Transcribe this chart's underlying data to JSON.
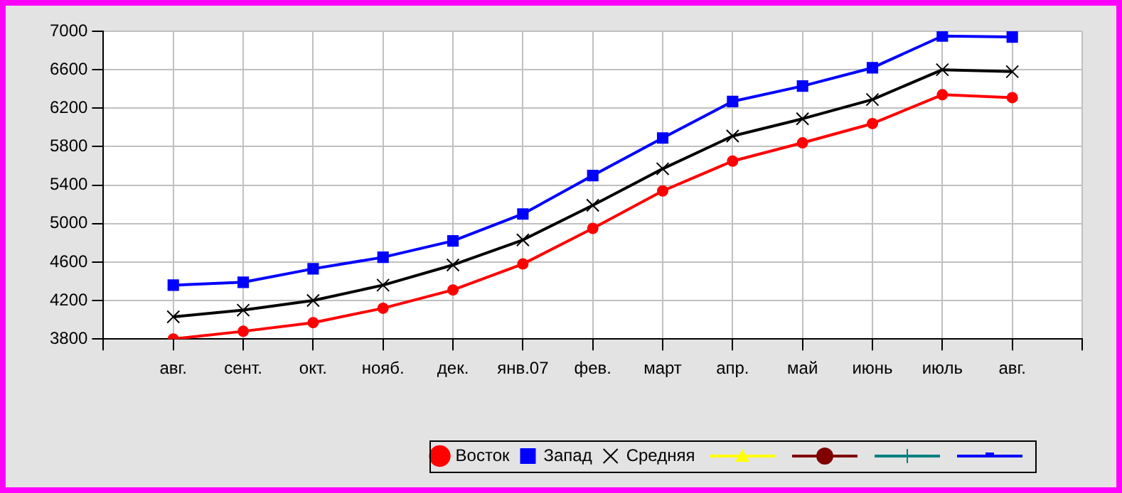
{
  "chart_data": {
    "type": "line",
    "categories": [
      null,
      "авг.",
      "сент.",
      "окт.",
      "нояб.",
      "дек.",
      "янв.07",
      "фев.",
      "март",
      "апр.",
      "май",
      "июнь",
      "июль",
      "авг.",
      null
    ],
    "series": [
      {
        "name": "Восток",
        "color": "#ff0000",
        "marker": "circle",
        "values": [
          null,
          3800,
          3880,
          3970,
          4120,
          4310,
          4580,
          4950,
          5340,
          5650,
          5840,
          6040,
          6340,
          6310,
          null
        ]
      },
      {
        "name": "Запад",
        "color": "#0000ff",
        "marker": "square",
        "values": [
          null,
          4360,
          4390,
          4530,
          4650,
          4820,
          5100,
          5500,
          5890,
          6270,
          6430,
          6620,
          6950,
          6940,
          null
        ]
      },
      {
        "name": "Средняя",
        "color": "#000000",
        "marker": "cross",
        "values": [
          null,
          4030,
          4100,
          4200,
          4360,
          4570,
          4830,
          5190,
          5570,
          5910,
          6090,
          6290,
          6600,
          6580,
          null
        ]
      }
    ],
    "ylim": [
      3800,
      7000
    ],
    "yticks": [
      3800,
      4200,
      4600,
      5000,
      5400,
      5800,
      6200,
      6600,
      7000
    ],
    "grid": true,
    "legend": "bottom",
    "line_style": "solid"
  }
}
